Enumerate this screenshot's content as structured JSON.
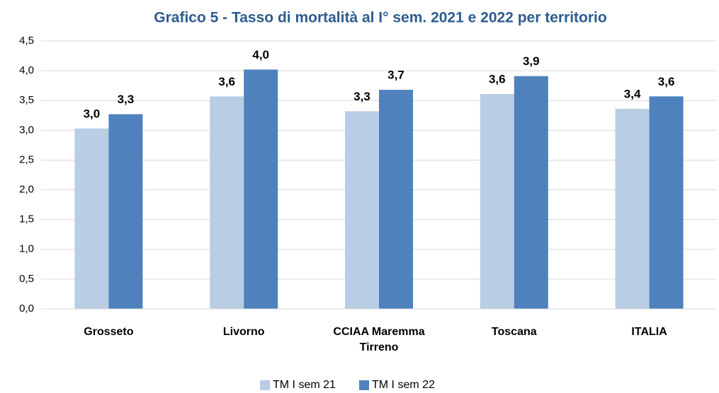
{
  "chart_data": {
    "type": "bar",
    "title": "Grafico 5 - Tasso di mortalità al I° sem. 2021 e 2022 per territorio",
    "categories": [
      "Grosseto",
      "Livorno",
      "CCIAA Maremma Tirreno",
      "Toscana",
      "ITALIA"
    ],
    "series": [
      {
        "name": "TM I sem 21",
        "color": "#b9cde5",
        "values": [
          3.03,
          3.57,
          3.32,
          3.61,
          3.36
        ],
        "value_labels": [
          "3,0",
          "3,6",
          "3,3",
          "3,6",
          "3,4"
        ]
      },
      {
        "name": "TM I sem 22",
        "color": "#4f81bd",
        "values": [
          3.27,
          4.02,
          3.68,
          3.91,
          3.57
        ],
        "value_labels": [
          "3,3",
          "4,0",
          "3,7",
          "3,9",
          "3,6"
        ]
      }
    ],
    "ylim": [
      0,
      4.5
    ],
    "yticks": [
      {
        "value": 0,
        "label": "0,0"
      },
      {
        "value": 0.5,
        "label": "0,5"
      },
      {
        "value": 1,
        "label": "1,0"
      },
      {
        "value": 1.5,
        "label": "1,5"
      },
      {
        "value": 2,
        "label": "2,0"
      },
      {
        "value": 2.5,
        "label": "2,5"
      },
      {
        "value": 3,
        "label": "3,0"
      },
      {
        "value": 3.5,
        "label": "3,5"
      },
      {
        "value": 4,
        "label": "4,0"
      },
      {
        "value": 4.5,
        "label": "4,5"
      }
    ],
    "grid": true,
    "legend": "bottom"
  }
}
